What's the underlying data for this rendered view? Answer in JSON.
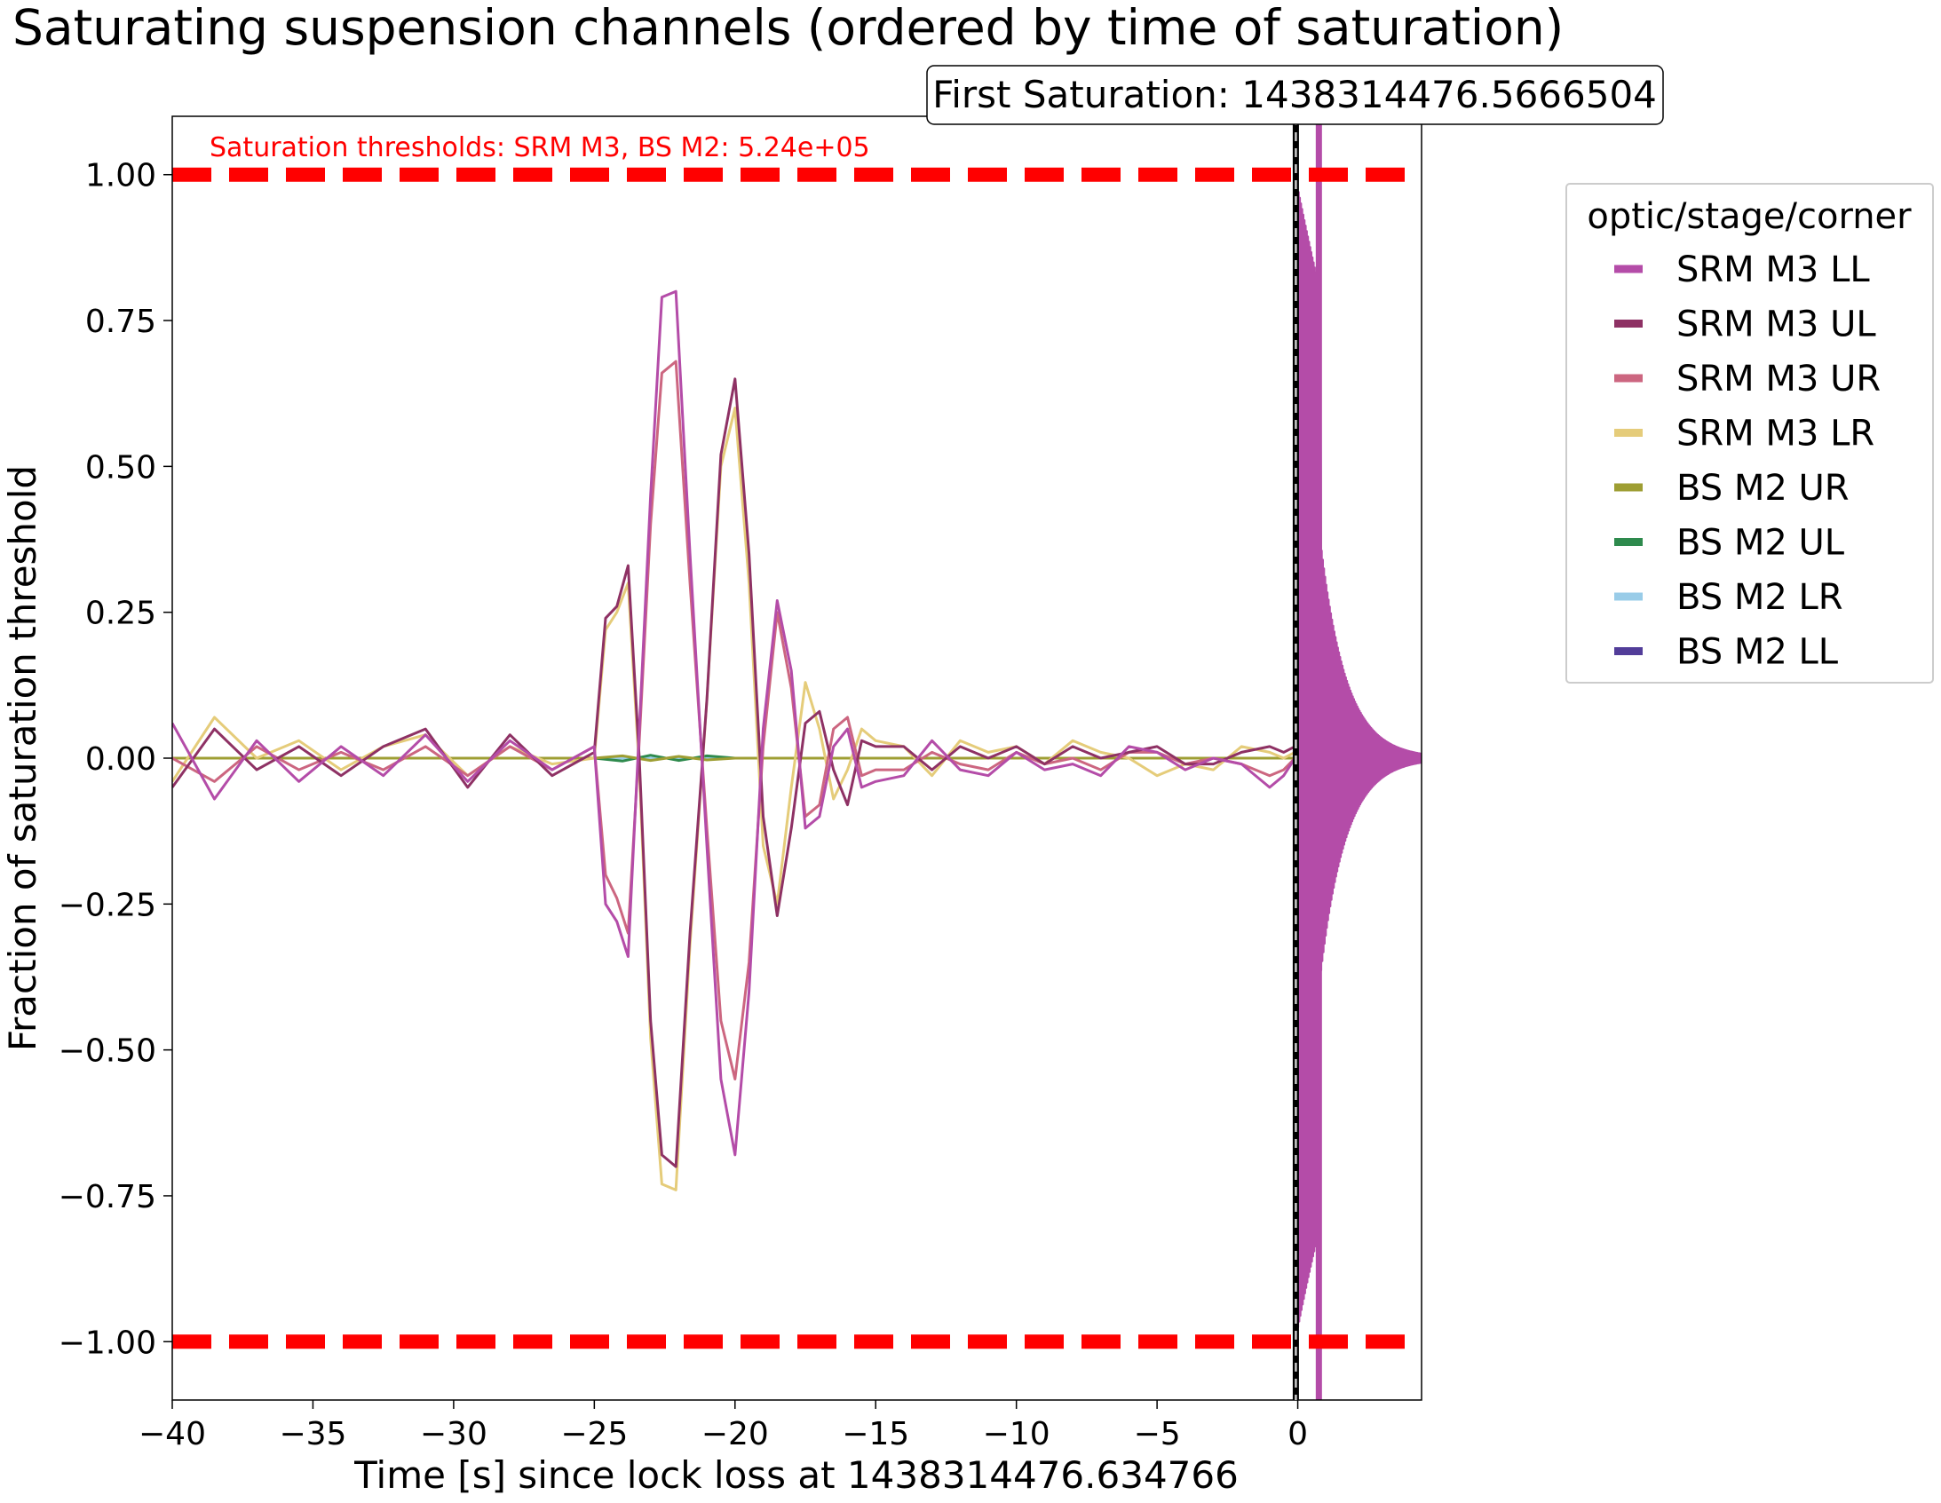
{
  "chart_data": {
    "type": "line",
    "title": "Saturating suspension channels (ordered by time of saturation)",
    "xlabel": "Time [s] since lock loss at 1438314476.634766",
    "ylabel": "Fraction of saturation threshold",
    "xlim": [
      -40,
      4.4
    ],
    "ylim": [
      -1.1,
      1.1
    ],
    "x_ticks": [
      -40,
      -35,
      -30,
      -25,
      -20,
      -15,
      -10,
      -5,
      0
    ],
    "x_tick_labels": [
      "−40",
      "−35",
      "−30",
      "−25",
      "−20",
      "−15",
      "−10",
      "−5",
      "0"
    ],
    "y_ticks": [
      1.0,
      0.75,
      0.5,
      0.25,
      0.0,
      -0.25,
      -0.5,
      -0.75,
      -1.0
    ],
    "y_tick_labels": [
      "1.00",
      "0.75",
      "0.50",
      "0.25",
      "0.00",
      "−0.25",
      "−0.50",
      "−0.75",
      "−1.00"
    ],
    "threshold_lines": [
      1.0,
      -1.0
    ],
    "threshold_color": "#ff0000",
    "threshold_text": "Saturation thresholds: SRM M3, BS M2: 5.24e+05",
    "first_saturation_label": "First Saturation: 1438314476.5666504",
    "first_saturation_x": -0.068,
    "legend": {
      "title": "optic/stage/corner",
      "placement": "outside-right-top"
    },
    "grid": false,
    "series": [
      {
        "name": "SRM M3 LL",
        "color": "#b44ca8",
        "lockloss_burst_amplitude": 1.0,
        "x": [
          -40,
          -38.5,
          -37,
          -35.5,
          -34,
          -32.5,
          -31,
          -29.5,
          -28,
          -26.5,
          -25,
          -24.6,
          -24.2,
          -23.8,
          -23.4,
          -23,
          -22.6,
          -22.1,
          -21.6,
          -21,
          -20.5,
          -20,
          -19.5,
          -19,
          -18.5,
          -18,
          -17.5,
          -17,
          -16.5,
          -16,
          -15.5,
          -15,
          -14,
          -13,
          -12,
          -11,
          -10,
          -9,
          -8,
          -7,
          -6,
          -5,
          -4,
          -3,
          -2,
          -1,
          -0.5,
          -0.1
        ],
        "y": [
          0.06,
          -0.07,
          0.03,
          -0.04,
          0.02,
          -0.03,
          0.04,
          -0.04,
          0.03,
          -0.02,
          0.02,
          -0.25,
          -0.28,
          -0.34,
          0.05,
          0.45,
          0.79,
          0.8,
          0.35,
          -0.15,
          -0.55,
          -0.68,
          -0.4,
          0.05,
          0.27,
          0.15,
          -0.12,
          -0.1,
          0.02,
          0.05,
          -0.05,
          -0.04,
          -0.03,
          0.03,
          -0.02,
          -0.03,
          0.01,
          -0.02,
          -0.01,
          -0.03,
          0.02,
          0.01,
          -0.02,
          0.0,
          -0.01,
          -0.05,
          -0.03,
          0.0
        ]
      },
      {
        "name": "SRM M3 UL",
        "color": "#8e3164",
        "lockloss_burst_amplitude": 0.85,
        "x": [
          -40,
          -38.5,
          -37,
          -35.5,
          -34,
          -32.5,
          -31,
          -29.5,
          -28,
          -26.5,
          -25,
          -24.6,
          -24.2,
          -23.8,
          -23.4,
          -23,
          -22.6,
          -22.1,
          -21.6,
          -21,
          -20.5,
          -20,
          -19.5,
          -19,
          -18.5,
          -18,
          -17.5,
          -17,
          -16.5,
          -16,
          -15.5,
          -15,
          -14,
          -13,
          -12,
          -11,
          -10,
          -9,
          -8,
          -7,
          -6,
          -5,
          -4,
          -3,
          -2,
          -1,
          -0.5,
          -0.1
        ],
        "y": [
          -0.05,
          0.05,
          -0.02,
          0.02,
          -0.03,
          0.02,
          0.05,
          -0.05,
          0.04,
          -0.03,
          0.01,
          0.24,
          0.26,
          0.33,
          0.0,
          -0.45,
          -0.68,
          -0.7,
          -0.3,
          0.1,
          0.52,
          0.65,
          0.35,
          -0.1,
          -0.27,
          -0.12,
          0.06,
          0.08,
          -0.02,
          -0.08,
          0.03,
          0.02,
          0.02,
          -0.02,
          0.02,
          0.0,
          0.02,
          -0.01,
          0.02,
          0.0,
          0.01,
          0.02,
          -0.01,
          -0.01,
          0.01,
          0.02,
          0.01,
          0.02
        ]
      },
      {
        "name": "SRM M3 UR",
        "color": "#cc6680",
        "lockloss_burst_amplitude": 0.7,
        "x": [
          -40,
          -38.5,
          -37,
          -35.5,
          -34,
          -32.5,
          -31,
          -29.5,
          -28,
          -26.5,
          -25,
          -24.6,
          -24.2,
          -23.8,
          -23.4,
          -23,
          -22.6,
          -22.1,
          -21.6,
          -21,
          -20.5,
          -20,
          -19.5,
          -19,
          -18.5,
          -18,
          -17.5,
          -17,
          -16.5,
          -16,
          -15.5,
          -15,
          -14,
          -13,
          -12,
          -11,
          -10,
          -9,
          -8,
          -7,
          -6,
          -5,
          -4,
          -3,
          -2,
          -1,
          -0.5,
          -0.1
        ],
        "y": [
          0.0,
          -0.04,
          0.02,
          -0.02,
          0.01,
          -0.02,
          0.02,
          -0.03,
          0.02,
          -0.02,
          0.02,
          -0.2,
          -0.24,
          -0.3,
          0.03,
          0.4,
          0.66,
          0.68,
          0.3,
          -0.12,
          -0.45,
          -0.55,
          -0.35,
          0.02,
          0.25,
          0.12,
          -0.1,
          -0.08,
          0.05,
          0.07,
          -0.03,
          -0.02,
          -0.02,
          0.01,
          -0.01,
          -0.02,
          0.01,
          -0.01,
          0.0,
          -0.02,
          0.01,
          0.01,
          -0.01,
          0.0,
          -0.01,
          -0.03,
          -0.02,
          0.0
        ]
      },
      {
        "name": "SRM M3 LR",
        "color": "#e5cc7a",
        "lockloss_burst_amplitude": 0.8,
        "x": [
          -40,
          -38.5,
          -37,
          -35.5,
          -34,
          -32.5,
          -31,
          -29.5,
          -28,
          -26.5,
          -25,
          -24.6,
          -24.2,
          -23.8,
          -23.4,
          -23,
          -22.6,
          -22.1,
          -21.6,
          -21,
          -20.5,
          -20,
          -19.5,
          -19,
          -18.5,
          -18,
          -17.5,
          -17,
          -16.5,
          -16,
          -15.5,
          -15,
          -14,
          -13,
          -12,
          -11,
          -10,
          -9,
          -8,
          -7,
          -6,
          -5,
          -4,
          -3,
          -2,
          -1,
          -0.5,
          -0.1
        ],
        "y": [
          -0.04,
          0.07,
          0.0,
          0.03,
          -0.02,
          0.02,
          0.04,
          -0.03,
          0.02,
          -0.01,
          0.0,
          0.22,
          0.25,
          0.3,
          -0.02,
          -0.48,
          -0.73,
          -0.74,
          -0.32,
          0.1,
          0.5,
          0.6,
          0.3,
          -0.15,
          -0.25,
          -0.05,
          0.13,
          0.05,
          -0.07,
          -0.02,
          0.05,
          0.03,
          0.02,
          -0.03,
          0.03,
          0.01,
          0.02,
          -0.01,
          0.03,
          0.01,
          0.0,
          -0.03,
          -0.01,
          -0.02,
          0.02,
          0.01,
          0.0,
          0.01
        ]
      },
      {
        "name": "BS M2 UR",
        "color": "#9e9e33",
        "lockloss_burst_amplitude": 0.75,
        "x": [
          -40,
          -35,
          -30,
          -25,
          -24,
          -23,
          -22,
          -21,
          -20,
          -15,
          -10,
          -5,
          -1,
          -0.1
        ],
        "y": [
          0.0,
          0.0,
          0.0,
          0.0,
          0.004,
          -0.004,
          0.003,
          -0.003,
          0.0,
          0.0,
          0.0,
          0.0,
          0.0,
          0.0
        ]
      },
      {
        "name": "BS M2 UL",
        "color": "#2e8a4d",
        "lockloss_burst_amplitude": 0.85,
        "x": [
          -40,
          -35,
          -30,
          -25,
          -24,
          -23,
          -22,
          -21,
          -20,
          -15,
          -10,
          -5,
          -1,
          -0.1
        ],
        "y": [
          0.0,
          0.0,
          0.0,
          0.0,
          -0.005,
          0.005,
          -0.004,
          0.004,
          0.0,
          0.0,
          0.0,
          0.0,
          0.0,
          0.0
        ]
      },
      {
        "name": "BS M2 LR",
        "color": "#99cce8",
        "lockloss_burst_amplitude": 0.95,
        "x": [
          -40,
          -35,
          -30,
          -25,
          -20,
          -15,
          -10,
          -5,
          -1,
          -0.1
        ],
        "y": [
          0.0,
          0.0,
          0.0,
          0.0,
          0.0,
          0.0,
          0.0,
          0.0,
          0.0,
          0.0
        ]
      },
      {
        "name": "BS M2 LL",
        "color": "#523d99",
        "lockloss_burst_amplitude": 0.9,
        "x": [
          -40,
          -35,
          -30,
          -25,
          -20,
          -15,
          -10,
          -5,
          -1,
          -0.1
        ],
        "y": [
          0.0,
          0.0,
          0.0,
          0.0,
          0.0,
          0.0,
          0.0,
          0.0,
          0.0,
          0.0
        ]
      }
    ]
  }
}
